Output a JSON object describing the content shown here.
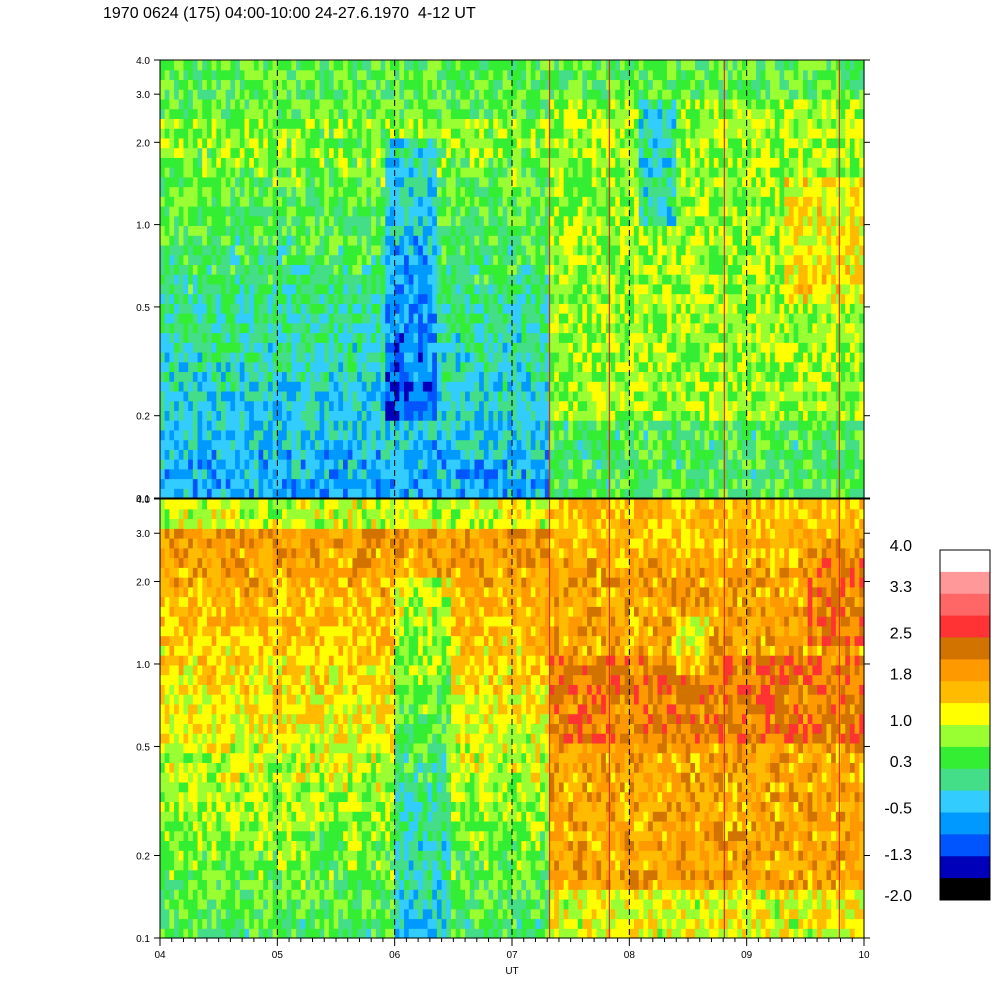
{
  "title": "1970 0624 (175) 04:00-10:00 24-27.6.1970  4-12 UT",
  "chart_data": {
    "type": "heatmap",
    "title": "1970 0624 (175) 04:00-10:00 24-27.6.1970  4-12 UT",
    "xlabel": "UT",
    "x_range": [
      4,
      10
    ],
    "x_ticks": [
      "04",
      "05",
      "06",
      "07",
      "08",
      "09",
      "10"
    ],
    "x_tick_values": [
      4,
      5,
      6,
      7,
      8,
      9,
      10
    ],
    "dashed_vlines": [
      5,
      6,
      7,
      8,
      9
    ],
    "y_scale": "log",
    "y_range": [
      0.1,
      4.0
    ],
    "y_ticks": [
      "0.1",
      "0.2",
      "0.5",
      "1.0",
      "2.0",
      "3.0",
      "4.0"
    ],
    "y_tick_values": [
      0.1,
      0.2,
      0.5,
      1.0,
      2.0,
      3.0,
      4.0
    ],
    "panels": [
      {
        "name": "upper",
        "description_level_early": -0.3,
        "description_level_late": 0.8
      },
      {
        "name": "lower",
        "description_level_early": 1.1,
        "description_level_late": 2.0
      }
    ],
    "transition_time": 7.33,
    "colorbar": {
      "labels": [
        "4.0",
        "3.3",
        "2.5",
        "1.8",
        "1.0",
        "0.3",
        "-0.5",
        "-1.3",
        "-2.0"
      ],
      "label_values": [
        4.0,
        3.3,
        2.5,
        1.8,
        1.0,
        0.3,
        -0.5,
        -1.3,
        -2.0
      ],
      "range": [
        -2.0,
        4.0
      ],
      "colors_top_to_bottom": [
        "#ffffff",
        "#ff9999",
        "#ff6666",
        "#ff3333",
        "#d27300",
        "#ff9900",
        "#ffbb00",
        "#ffff00",
        "#99ff33",
        "#33ee33",
        "#44dd88",
        "#33ccff",
        "#0099ff",
        "#0055ff",
        "#0000bb",
        "#000000"
      ]
    }
  }
}
